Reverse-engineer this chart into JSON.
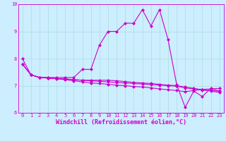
{
  "title": "",
  "xlabel": "Windchill (Refroidissement éolien,°C)",
  "ylabel": "",
  "background_color": "#cceeff",
  "line_color": "#cc00cc",
  "xlim": [
    -0.5,
    23.5
  ],
  "ylim": [
    6,
    10
  ],
  "yticks": [
    6,
    7,
    8,
    9,
    10
  ],
  "xticks": [
    0,
    1,
    2,
    3,
    4,
    5,
    6,
    7,
    8,
    9,
    10,
    11,
    12,
    13,
    14,
    15,
    16,
    17,
    18,
    19,
    20,
    21,
    22,
    23
  ],
  "series": [
    {
      "x": [
        0,
        1,
        2,
        3,
        4,
        5,
        6,
        7,
        8,
        9,
        10,
        11,
        12,
        13,
        14,
        15,
        16,
        17,
        18,
        19,
        20,
        21,
        22,
        23
      ],
      "y": [
        8.0,
        7.4,
        7.3,
        7.3,
        7.3,
        7.3,
        7.3,
        7.6,
        7.6,
        8.5,
        9.0,
        9.0,
        9.3,
        9.3,
        9.8,
        9.2,
        9.8,
        8.7,
        7.05,
        6.2,
        6.8,
        6.6,
        6.9,
        6.8
      ]
    },
    {
      "x": [
        0,
        1,
        2,
        3,
        4,
        5,
        6,
        7,
        8,
        9,
        10,
        11,
        12,
        13,
        14,
        15,
        16,
        17,
        18,
        19,
        20,
        21,
        22,
        23
      ],
      "y": [
        7.8,
        7.4,
        7.3,
        7.3,
        7.25,
        7.25,
        7.22,
        7.2,
        7.2,
        7.2,
        7.2,
        7.18,
        7.15,
        7.12,
        7.1,
        7.08,
        7.05,
        7.02,
        7.0,
        6.95,
        6.9,
        6.85,
        6.8,
        6.75
      ]
    },
    {
      "x": [
        0,
        1,
        2,
        3,
        4,
        5,
        6,
        7,
        8,
        9,
        10,
        11,
        12,
        13,
        14,
        15,
        16,
        17,
        18,
        19,
        20,
        21,
        22,
        23
      ],
      "y": [
        7.8,
        7.4,
        7.3,
        7.28,
        7.26,
        7.24,
        7.22,
        7.2,
        7.18,
        7.16,
        7.14,
        7.12,
        7.1,
        7.08,
        7.06,
        7.04,
        7.02,
        7.0,
        6.98,
        6.92,
        6.88,
        6.84,
        6.82,
        6.8
      ]
    },
    {
      "x": [
        0,
        1,
        2,
        3,
        4,
        5,
        6,
        7,
        8,
        9,
        10,
        11,
        12,
        13,
        14,
        15,
        16,
        17,
        18,
        19,
        20,
        21,
        22,
        23
      ],
      "y": [
        7.8,
        7.4,
        7.3,
        7.28,
        7.26,
        7.22,
        7.18,
        7.14,
        7.1,
        7.08,
        7.05,
        7.02,
        7.0,
        6.97,
        6.95,
        6.92,
        6.88,
        6.85,
        6.82,
        6.78,
        6.82,
        6.86,
        6.88,
        6.9
      ]
    }
  ],
  "markers": [
    "D",
    "D",
    "D",
    "D"
  ],
  "marker_size": 2,
  "line_width": 0.8,
  "grid_color": "#aadddd",
  "tick_fontsize": 5,
  "label_fontsize": 6
}
